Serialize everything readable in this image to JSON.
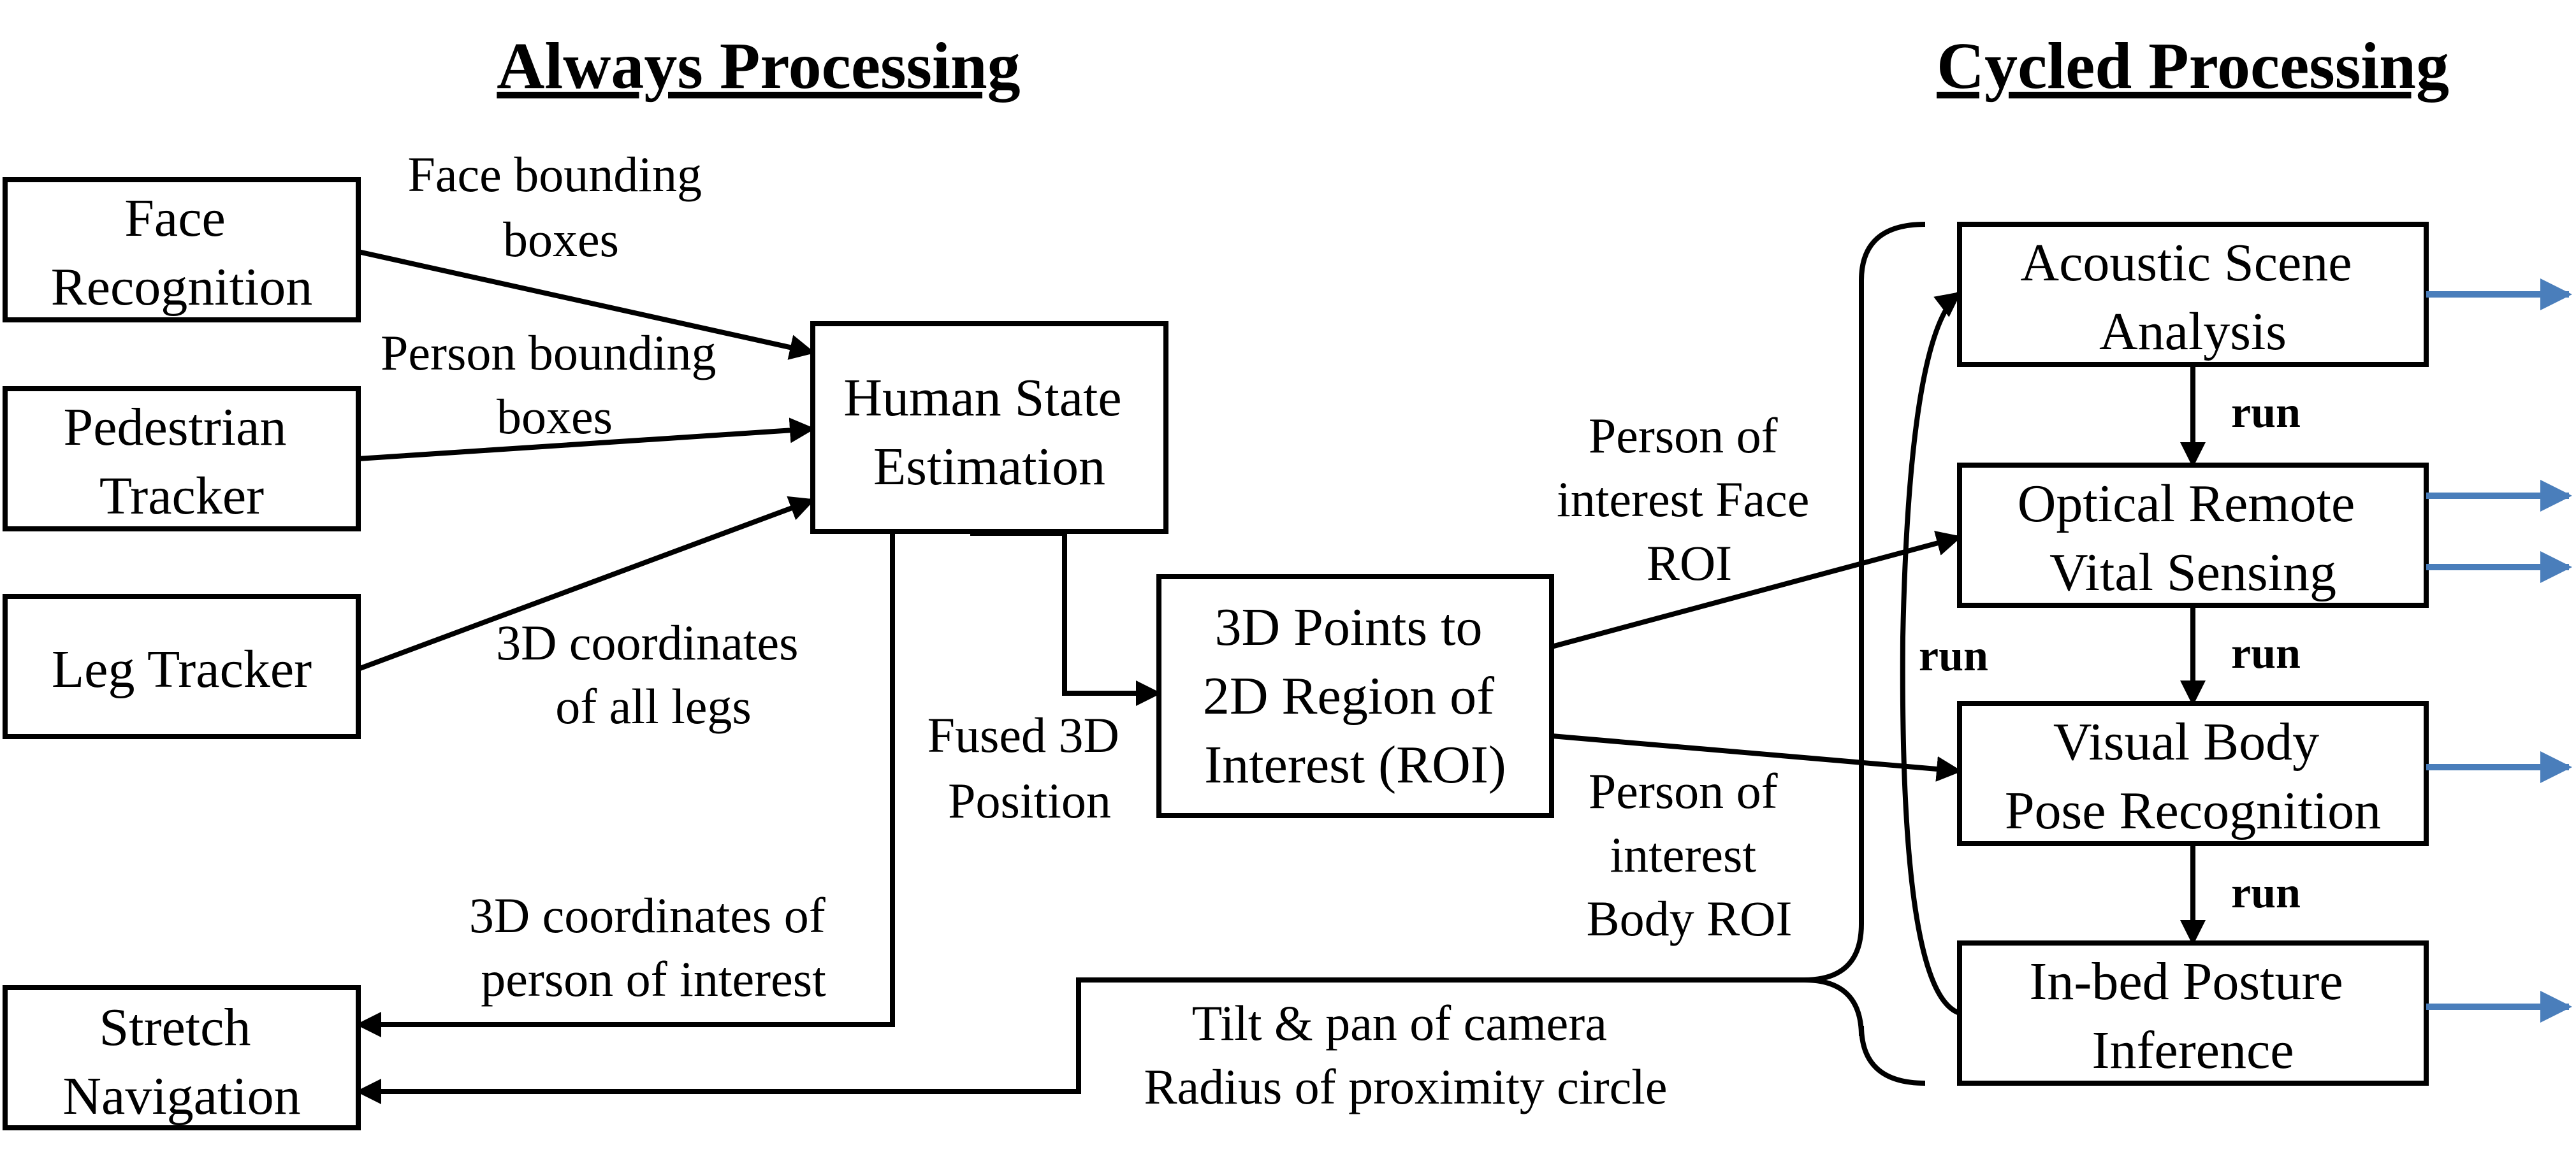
{
  "headings": {
    "always": "Always Processing",
    "cycled": "Cycled Processing"
  },
  "boxes": {
    "face_recognition": [
      "Face",
      "Recognition"
    ],
    "pedestrian_tracker": [
      "Pedestrian",
      "Tracker"
    ],
    "leg_tracker": [
      "Leg Tracker"
    ],
    "stretch_navigation": [
      "Stretch",
      "Navigation"
    ],
    "human_state_estimation": [
      "Human State",
      "Estimation"
    ],
    "roi_projection": [
      "3D Points to",
      "2D Region of",
      "Interest (ROI)"
    ],
    "acoustic_scene": [
      "Acoustic Scene",
      "Analysis"
    ],
    "optical_remote": [
      "Optical Remote",
      "Vital Sensing"
    ],
    "visual_body_pose": [
      "Visual Body",
      "Pose Recognition"
    ],
    "inbed_posture": [
      "In-bed Posture",
      "Inference"
    ]
  },
  "labels": {
    "face_bounding_boxes": [
      "Face bounding",
      "boxes"
    ],
    "person_bounding_boxes": [
      "Person bounding",
      "boxes"
    ],
    "leg_coordinates": [
      "3D coordinates",
      "of all legs"
    ],
    "fused_position": [
      "Fused 3D",
      "Position"
    ],
    "person_of_interest_coords": [
      "3D coordinates of",
      "person of interest"
    ],
    "face_roi": [
      "Person of",
      "interest Face",
      "ROI"
    ],
    "body_roi": [
      "Person of",
      "interest",
      "Body ROI"
    ],
    "camera_control": [
      "Tilt & pan of camera",
      "Radius of proximity circle"
    ]
  },
  "run_label": "run",
  "colors": {
    "output_arrow": "#4a7ebb",
    "stroke": "#000000"
  }
}
